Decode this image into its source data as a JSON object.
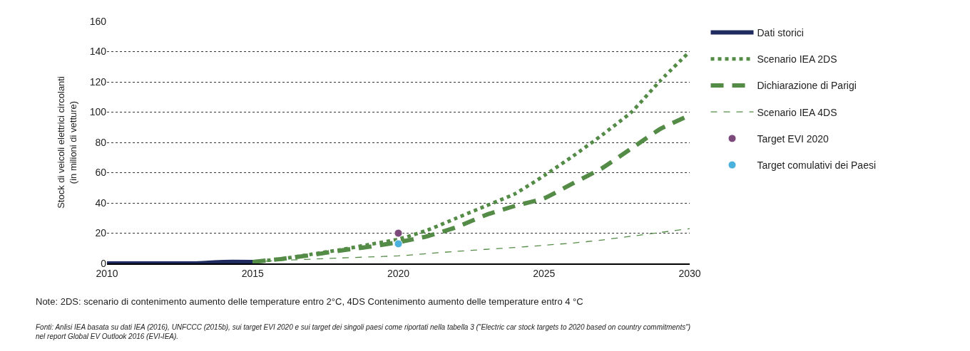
{
  "chart_data": {
    "type": "line",
    "ylabel": "Stock di veicoli elettrici circolanti\n(in milioni di vetture)",
    "series": [
      {
        "name": "Dati storici",
        "color": "#1f2a5e",
        "line_style": "solid",
        "x": [
          2010,
          2011,
          2012,
          2013,
          2014,
          2015
        ],
        "values": [
          0,
          0,
          0,
          0,
          1,
          1
        ]
      },
      {
        "name": "Scenario IEA 2DS",
        "color": "#548c47",
        "line_style": "dotted",
        "x": [
          2015,
          2016,
          2017,
          2018,
          2019,
          2020,
          2021,
          2022,
          2023,
          2024,
          2025,
          2026,
          2027,
          2028,
          2029,
          2030
        ],
        "values": [
          1,
          3,
          6,
          9,
          12.5,
          16,
          22,
          30,
          38,
          46,
          58,
          71,
          85,
          100,
          121,
          140
        ]
      },
      {
        "name": "Dichiarazione di Parigi",
        "color": "#548c47",
        "line_style": "dashed",
        "x": [
          2015,
          2016,
          2017,
          2018,
          2019,
          2020,
          2021,
          2022,
          2023,
          2024,
          2025,
          2026,
          2027,
          2028,
          2029,
          2030
        ],
        "values": [
          1,
          3,
          5.5,
          8.5,
          11,
          14,
          18,
          24,
          32,
          38,
          43,
          53,
          63,
          76,
          89,
          98
        ]
      },
      {
        "name": "Scenario IEA 4DS",
        "color": "#548c47",
        "line_style": "dashed",
        "x": [
          2015,
          2016,
          2017,
          2018,
          2019,
          2020,
          2021,
          2022,
          2023,
          2024,
          2025,
          2026,
          2027,
          2028,
          2029,
          2030
        ],
        "values": [
          1,
          2,
          2.8,
          3.6,
          4.3,
          5,
          6.5,
          8,
          9.3,
          10.5,
          12,
          13.5,
          15.5,
          18,
          20.5,
          23
        ]
      },
      {
        "name": "Target EVI 2020",
        "type": "scatter",
        "color": "#7b4a7a",
        "x": [
          2020
        ],
        "values": [
          20
        ]
      },
      {
        "name": "Target comulativi dei Paesi",
        "type": "scatter",
        "color": "#4ab0dc",
        "x": [
          2020
        ],
        "values": [
          13
        ]
      }
    ],
    "xlim": [
      2010,
      2030
    ],
    "xticks": [
      2010,
      2015,
      2020,
      2025,
      2030
    ],
    "ylim": [
      0,
      160
    ],
    "yticks": [
      0,
      20,
      40,
      60,
      80,
      100,
      120,
      140,
      160
    ],
    "grid": "y",
    "legend": "right",
    "annotations": [
      "Note: 2DS: scenario di contenimento aumento delle temperature entro 2°C, 4DS Contenimento aumento delle temperature entro 4 °C",
      "Fonti: Anlisi IEA basata su dati IEA (2016), UNFCCC (2015b), sui target EVI 2020 e sui target dei singoli paesi come riportati nella tabella 3 (\"Electric car stock targets to 2020 based on country commitments\")\nnel report Global EV Outlook 2016 (EVI-IEA)."
    ]
  }
}
